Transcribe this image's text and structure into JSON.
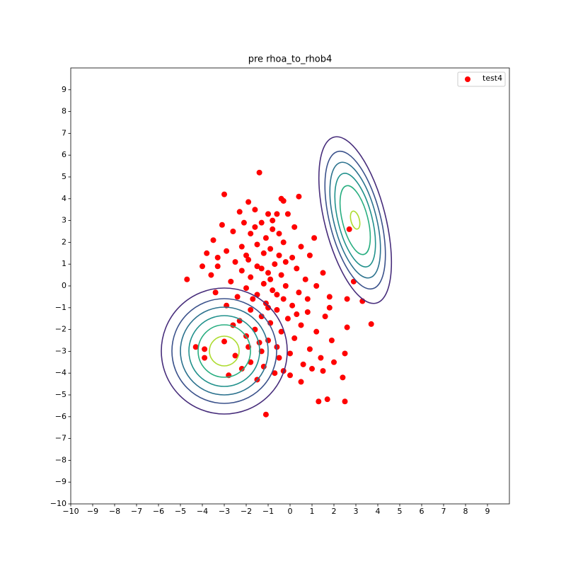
{
  "chart_data": {
    "type": "scatter",
    "title": "pre rhoa_to_rhob4",
    "xlim": [
      -10,
      10
    ],
    "ylim": [
      -10,
      10
    ],
    "xticks": [
      {
        "value": -10,
        "label": "−10"
      },
      {
        "value": -9,
        "label": "−9"
      },
      {
        "value": -8,
        "label": "−8"
      },
      {
        "value": -7,
        "label": "−7"
      },
      {
        "value": -6,
        "label": "−6"
      },
      {
        "value": -5,
        "label": "−5"
      },
      {
        "value": -4,
        "label": "−4"
      },
      {
        "value": -3,
        "label": "−3"
      },
      {
        "value": -2,
        "label": "−2"
      },
      {
        "value": -1,
        "label": "−1"
      },
      0,
      1,
      2,
      3,
      4,
      5,
      6,
      7,
      8,
      9
    ],
    "yticks": [
      {
        "value": -10,
        "label": "−10"
      },
      {
        "value": -9,
        "label": "−9"
      },
      {
        "value": -8,
        "label": "−8"
      },
      {
        "value": -7,
        "label": "−7"
      },
      {
        "value": -6,
        "label": "−6"
      },
      {
        "value": -5,
        "label": "−5"
      },
      {
        "value": -4,
        "label": "−4"
      },
      {
        "value": -3,
        "label": "−3"
      },
      {
        "value": -2,
        "label": "−2"
      },
      {
        "value": -1,
        "label": "−1"
      },
      0,
      1,
      2,
      3,
      4,
      5,
      6,
      7,
      8,
      9
    ],
    "legend": "upper right",
    "x": [
      -1.4,
      -3.0,
      0.4,
      -0.4,
      -1.9,
      -0.3,
      -1.6,
      -1.0,
      -0.6,
      -2.1,
      -1.3,
      -3.1,
      0.2,
      -0.8,
      -1.8,
      -2.6,
      -1.1,
      -3.5,
      -0.3,
      -1.5,
      -2.2,
      -0.9,
      0.5,
      -2.9,
      -1.2,
      -0.5,
      -3.8,
      0.1,
      -1.9,
      -2.5,
      0.9,
      -0.7,
      -1.5,
      -3.3,
      -4.0,
      0.3,
      -2.2,
      -1.0,
      1.5,
      -0.4,
      -3.6,
      -1.8,
      -4.7,
      0.7,
      -2.7,
      -1.2,
      2.9,
      -0.2,
      -2.0,
      1.2,
      -0.8,
      -3.4,
      0.4,
      -1.5,
      -2.4,
      -0.3,
      1.8,
      -1.1,
      0.1,
      -2.9,
      2.6,
      -0.6,
      -1.8,
      0.8,
      -1.3,
      -0.1,
      1.6,
      -2.3,
      -0.9,
      0.5,
      3.7,
      2.6,
      -1.6,
      -0.4,
      1.2,
      -2.0,
      0.2,
      -1.0,
      1.9,
      -3.0,
      -0.6,
      -1.9,
      0.9,
      -3.9,
      -1.3,
      0.0,
      2.5,
      -2.5,
      -0.5,
      1.4,
      -1.8,
      -3.9,
      0.6,
      -1.2,
      2.0,
      -0.3,
      1.5,
      -2.2,
      0.0,
      -0.7,
      -1.5,
      0.5,
      2.4,
      -4.3,
      -2.8,
      1.7,
      2.5,
      1.3,
      -1.1,
      -0.9,
      -0.6,
      -1.3,
      -0.2,
      -1.7,
      0.3,
      -1.0,
      -0.5,
      -2.0,
      0.8,
      -1.4,
      -2.6,
      1.0,
      -0.8,
      -2.3,
      1.1,
      -3.3,
      3.3,
      2.7,
      1.8,
      -1.6,
      -0.1
    ],
    "series": [
      {
        "name": "test4",
        "color": "#ff0000",
        "values": [
          5.2,
          4.2,
          4.1,
          4.0,
          3.85,
          3.9,
          3.5,
          3.3,
          3.3,
          2.9,
          2.9,
          2.8,
          2.7,
          2.6,
          2.4,
          2.5,
          2.2,
          2.1,
          2.0,
          1.9,
          1.8,
          1.7,
          1.8,
          1.6,
          1.5,
          1.4,
          1.5,
          1.3,
          1.2,
          1.1,
          1.4,
          1.0,
          0.9,
          0.9,
          0.9,
          0.8,
          0.7,
          0.6,
          0.6,
          0.5,
          0.5,
          0.4,
          0.3,
          0.3,
          0.2,
          0.1,
          0.2,
          0.0,
          -0.1,
          0.0,
          -0.2,
          -0.3,
          -0.3,
          -0.4,
          -0.5,
          -0.6,
          -0.5,
          -0.8,
          -0.9,
          -0.9,
          -0.6,
          -1.1,
          -1.1,
          -1.2,
          -1.4,
          -1.5,
          -1.4,
          -1.6,
          -1.7,
          -1.8,
          -1.75,
          -1.9,
          -2.0,
          -2.1,
          -2.1,
          -2.3,
          -2.4,
          -2.5,
          -2.5,
          -2.55,
          -2.8,
          -2.8,
          -2.9,
          -2.9,
          -3.0,
          -3.1,
          -3.1,
          -3.2,
          -3.3,
          -3.3,
          -3.5,
          -3.3,
          -3.6,
          -3.7,
          -3.5,
          -3.9,
          -3.9,
          -3.8,
          -4.1,
          -4.0,
          -4.3,
          -4.4,
          -4.2,
          -2.8,
          -4.1,
          -5.2,
          -5.3,
          -5.3,
          -5.9,
          0.3,
          -0.4,
          0.8,
          1.1,
          -0.6,
          -1.3,
          -1.0,
          2.4,
          1.4,
          -0.6,
          -2.6,
          -1.8,
          -3.8,
          3.0,
          3.4,
          2.2,
          1.3,
          -0.7,
          2.6,
          -1.0,
          2.7,
          3.3
        ]
      }
    ]
  }
}
